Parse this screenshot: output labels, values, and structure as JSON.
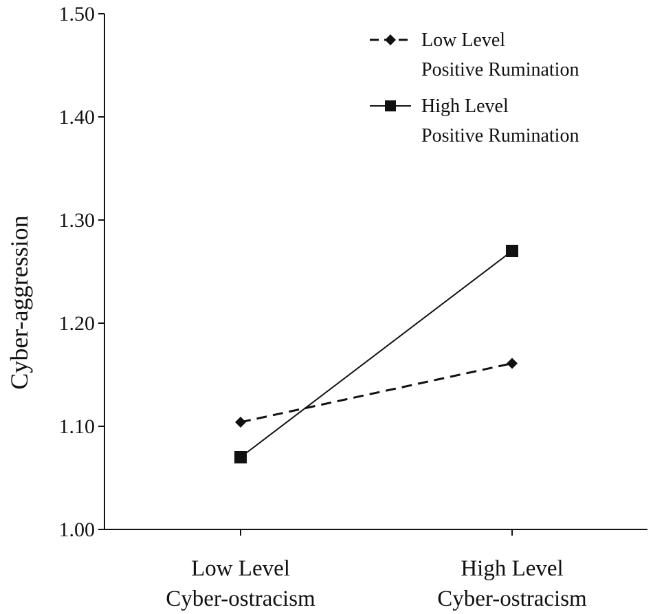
{
  "chart_data": {
    "type": "line",
    "title": "",
    "xlabel": "",
    "ylabel": "Cyber-aggression",
    "ylim": [
      1.0,
      1.5
    ],
    "y_ticks": [
      "1.00",
      "1.10",
      "1.20",
      "1.30",
      "1.40",
      "1.50"
    ],
    "y_tick_values": [
      1.0,
      1.1,
      1.2,
      1.3,
      1.4,
      1.5
    ],
    "categories": [
      {
        "line1": "Low Level",
        "line2": "Cyber-ostracism"
      },
      {
        "line1": "High Level",
        "line2": "Cyber-ostracism"
      }
    ],
    "series": [
      {
        "name_line1": "Low Level",
        "name_line2": "Positive Rumination",
        "values": [
          1.104,
          1.161
        ],
        "dashed": true,
        "marker": "diamond"
      },
      {
        "name_line1": "High Level",
        "name_line2": "Positive Rumination",
        "values": [
          1.07,
          1.27
        ],
        "dashed": false,
        "marker": "square"
      }
    ],
    "legend_position": "top-right",
    "grid": false,
    "colors": {
      "line": "#111111",
      "axis": "#111111"
    }
  }
}
